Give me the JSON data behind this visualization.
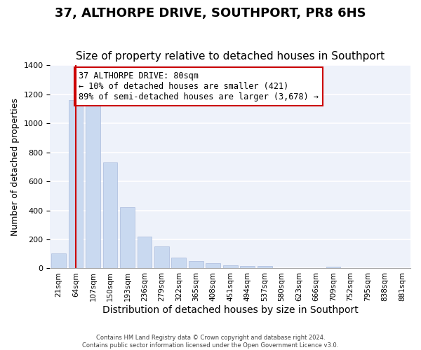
{
  "title": "37, ALTHORPE DRIVE, SOUTHPORT, PR8 6HS",
  "subtitle": "Size of property relative to detached houses in Southport",
  "xlabel": "Distribution of detached houses by size in Southport",
  "ylabel": "Number of detached properties",
  "categories": [
    "21sqm",
    "64sqm",
    "107sqm",
    "150sqm",
    "193sqm",
    "236sqm",
    "279sqm",
    "322sqm",
    "365sqm",
    "408sqm",
    "451sqm",
    "494sqm",
    "537sqm",
    "580sqm",
    "623sqm",
    "666sqm",
    "709sqm",
    "752sqm",
    "795sqm",
    "838sqm",
    "881sqm"
  ],
  "values": [
    105,
    1160,
    1160,
    730,
    420,
    220,
    150,
    75,
    50,
    35,
    20,
    15,
    15,
    0,
    0,
    0,
    10,
    0,
    0,
    0,
    0
  ],
  "bar_color": "#c9d9f0",
  "red_line_x": 1.0,
  "annotation_title": "37 ALTHORPE DRIVE: 80sqm",
  "annotation_line1": "← 10% of detached houses are smaller (421)",
  "annotation_line2": "89% of semi-detached houses are larger (3,678) →",
  "annotation_box_color": "#ffffff",
  "annotation_box_edgecolor": "#cc0000",
  "red_line_color": "#cc0000",
  "ylim": [
    0,
    1400
  ],
  "yticks": [
    0,
    200,
    400,
    600,
    800,
    1000,
    1200,
    1400
  ],
  "footer_line1": "Contains HM Land Registry data © Crown copyright and database right 2024.",
  "footer_line2": "Contains public sector information licensed under the Open Government Licence v3.0.",
  "title_fontsize": 13,
  "subtitle_fontsize": 11,
  "xlabel_fontsize": 10,
  "ylabel_fontsize": 9,
  "bg_color": "#eef2fa"
}
